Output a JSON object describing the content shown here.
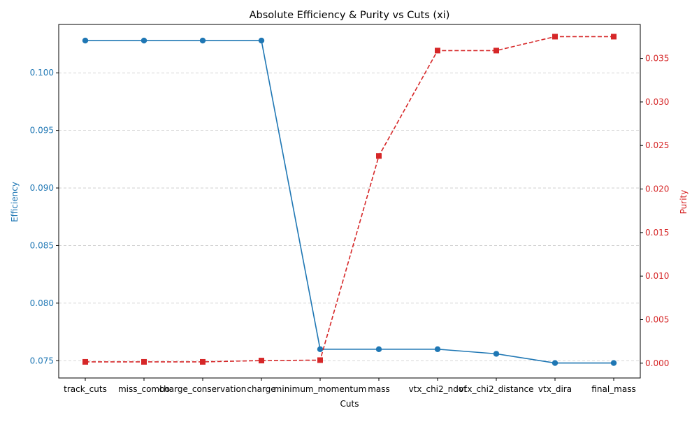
{
  "chart_data": {
    "type": "line",
    "title": "Absolute Efficiency & Purity vs Cuts (xi)",
    "xlabel": "Cuts",
    "categories": [
      "track_cuts",
      "miss_combo",
      "charge_conservation",
      "charge",
      "minimum_momentum",
      "mass",
      "vtx_chi2_ndof",
      "vtx_chi2_distance",
      "vtx_dira",
      "final_mass"
    ],
    "left_axis": {
      "label": "Efficiency",
      "color": "#1f77b4",
      "ylim": [
        0.0735,
        0.1042
      ],
      "ticks": [
        "0.075",
        "0.080",
        "0.085",
        "0.090",
        "0.095",
        "0.100"
      ]
    },
    "right_axis": {
      "label": "Purity",
      "color": "#d62728",
      "ylim": [
        -0.0017,
        0.0389
      ],
      "ticks": [
        "0.000",
        "0.005",
        "0.010",
        "0.015",
        "0.020",
        "0.025",
        "0.030",
        "0.035"
      ]
    },
    "series": [
      {
        "axis": "left",
        "color": "#1f77b4",
        "linestyle": "solid",
        "marker": "circle",
        "values": [
          0.1028,
          0.1028,
          0.1028,
          0.1028,
          0.076,
          0.076,
          0.076,
          0.0756,
          0.0748,
          0.0748
        ]
      },
      {
        "axis": "right",
        "color": "#d62728",
        "linestyle": "dashed",
        "marker": "square",
        "values": [
          0.00015,
          0.00015,
          0.00015,
          0.0003,
          0.00035,
          0.0238,
          0.0359,
          0.0359,
          0.0375,
          0.0375
        ]
      }
    ],
    "grid": "horizontal-dashed"
  }
}
